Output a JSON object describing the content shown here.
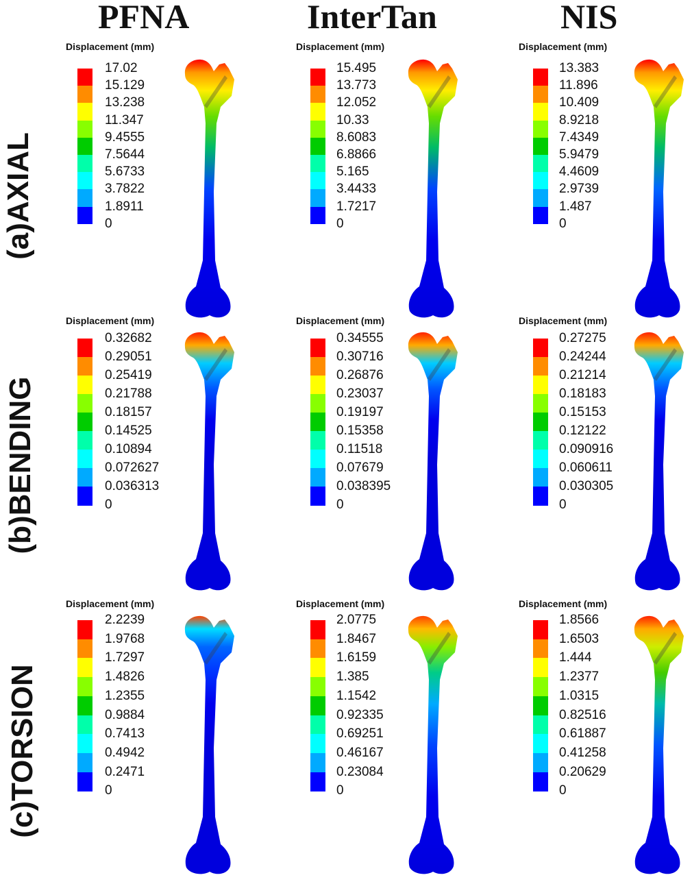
{
  "columns": [
    "PFNA",
    "InterTan",
    "NIS"
  ],
  "rows": [
    "(a)AXIAL",
    "(b)BENDING",
    "(c)TORSION"
  ],
  "legend_title": "Displacement (mm)",
  "colormap": [
    "#ff0000",
    "#ff8c00",
    "#ffff00",
    "#88ff00",
    "#00cc00",
    "#00ffaa",
    "#00ffff",
    "#00aaff",
    "#0000ff"
  ],
  "panels": [
    {
      "row": "(a)AXIAL",
      "column": "PFNA",
      "ticks": [
        "17.02",
        "15.129",
        "13.238",
        "11.347",
        "9.4555",
        "7.5644",
        "5.6733",
        "3.7822",
        "1.8911",
        "0"
      ],
      "gradient": [
        "#ff0000",
        "#ff9900",
        "#ffee00",
        "#66dd00",
        "#00bb66",
        "#0044ff",
        "#0000ee",
        "#0000dd"
      ]
    },
    {
      "row": "(a)AXIAL",
      "column": "InterTan",
      "ticks": [
        "15.495",
        "13.773",
        "12.052",
        "10.33",
        "8.6083",
        "6.8866",
        "5.165",
        "3.4433",
        "1.7217",
        "0"
      ],
      "gradient": [
        "#ff0000",
        "#ff9900",
        "#ffee00",
        "#66dd00",
        "#00bb66",
        "#0044ff",
        "#0000ee",
        "#0000dd"
      ]
    },
    {
      "row": "(a)AXIAL",
      "column": "NIS",
      "ticks": [
        "13.383",
        "11.896",
        "10.409",
        "8.9218",
        "7.4349",
        "5.9479",
        "4.4609",
        "2.9739",
        "1.487",
        "0"
      ],
      "gradient": [
        "#ff0000",
        "#ff9900",
        "#ffee00",
        "#66dd00",
        "#00bb66",
        "#0066ff",
        "#0000ee",
        "#0000dd"
      ]
    },
    {
      "row": "(b)BENDING",
      "column": "PFNA",
      "ticks": [
        "0.32682",
        "0.29051",
        "0.25419",
        "0.21788",
        "0.18157",
        "0.14525",
        "0.10894",
        "0.072627",
        "0.036313",
        "0"
      ],
      "gradient": [
        "#ff2200",
        "#ffaa00",
        "#00ccff",
        "#0055ff",
        "#0000ee",
        "#0000dd",
        "#0000dd",
        "#0000dd"
      ]
    },
    {
      "row": "(b)BENDING",
      "column": "InterTan",
      "ticks": [
        "0.34555",
        "0.30716",
        "0.26876",
        "0.23037",
        "0.19197",
        "0.15358",
        "0.11518",
        "0.07679",
        "0.038395",
        "0"
      ],
      "gradient": [
        "#ff2200",
        "#ffaa00",
        "#00ccff",
        "#0055ff",
        "#0000ee",
        "#0000dd",
        "#0000dd",
        "#0000dd"
      ]
    },
    {
      "row": "(b)BENDING",
      "column": "NIS",
      "ticks": [
        "0.27275",
        "0.24244",
        "0.21214",
        "0.18183",
        "0.15153",
        "0.12122",
        "0.090916",
        "0.060611",
        "0.030305",
        "0"
      ],
      "gradient": [
        "#ff2200",
        "#ffaa00",
        "#00ccff",
        "#0055ff",
        "#0000ee",
        "#0000dd",
        "#0000dd",
        "#0000dd"
      ]
    },
    {
      "row": "(c)TORSION",
      "column": "PFNA",
      "ticks": [
        "2.2239",
        "1.9768",
        "1.7297",
        "1.4826",
        "1.2355",
        "0.9884",
        "0.7413",
        "0.4942",
        "0.2471",
        "0"
      ],
      "gradient": [
        "#ff4400",
        "#00ddff",
        "#0066ff",
        "#0033ff",
        "#0000ee",
        "#0000dd",
        "#0000dd",
        "#0000dd"
      ]
    },
    {
      "row": "(c)TORSION",
      "column": "InterTan",
      "ticks": [
        "2.0775",
        "1.8467",
        "1.6159",
        "1.385",
        "1.1542",
        "0.92335",
        "0.69251",
        "0.46167",
        "0.23084",
        "0"
      ],
      "gradient": [
        "#ff4400",
        "#ffbb00",
        "#88ee00",
        "#00cc88",
        "#00aaff",
        "#0044ff",
        "#0000ee",
        "#0000dd"
      ]
    },
    {
      "row": "(c)TORSION",
      "column": "NIS",
      "ticks": [
        "1.8566",
        "1.6503",
        "1.444",
        "1.2377",
        "1.0315",
        "0.82516",
        "0.61887",
        "0.41258",
        "0.20629",
        "0"
      ],
      "gradient": [
        "#ff2200",
        "#ffaa00",
        "#ccee00",
        "#44cc00",
        "#00bbaa",
        "#0055ff",
        "#0000ee",
        "#0000dd"
      ]
    }
  ]
}
